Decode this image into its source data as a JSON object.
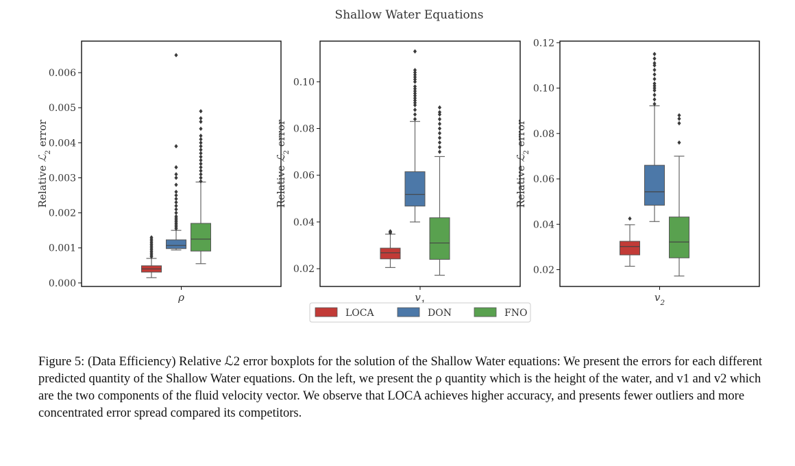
{
  "suptitle": "Shallow Water Equations",
  "colors": {
    "LOCA": "#c23b37",
    "DON": "#4c78a8",
    "FNO": "#59a14f",
    "frame": "#111111",
    "whisker": "#666666",
    "outlier": "#3b3b3b"
  },
  "chart_data": [
    {
      "type": "box",
      "category": "ρ",
      "ylabel": "Relative ℒ2 error",
      "ylim": [
        -0.0001,
        0.0069
      ],
      "yticks": [
        "0.000",
        "0.001",
        "0.002",
        "0.003",
        "0.004",
        "0.005",
        "0.006"
      ],
      "series": [
        {
          "name": "LOCA",
          "whislo": 0.00015,
          "q1": 0.00031,
          "med": 0.0004,
          "q3": 0.00049,
          "whishi": 0.0007,
          "fliers": [
            0.00075,
            0.0008,
            0.00085,
            0.0009,
            0.00095,
            0.001,
            0.00105,
            0.0011,
            0.00115,
            0.0012,
            0.00125,
            0.0013
          ]
        },
        {
          "name": "DON",
          "whislo": 0.00094,
          "q1": 0.00098,
          "med": 0.00107,
          "q3": 0.00123,
          "whishi": 0.0015,
          "fliers": [
            0.00155,
            0.0016,
            0.00165,
            0.0017,
            0.00175,
            0.0018,
            0.00185,
            0.0019,
            0.002,
            0.0021,
            0.0022,
            0.0023,
            0.0024,
            0.0025,
            0.0026,
            0.0028,
            0.003,
            0.0031,
            0.0033,
            0.0039,
            0.0065
          ]
        },
        {
          "name": "FNO",
          "whislo": 0.00055,
          "q1": 0.00091,
          "med": 0.00125,
          "q3": 0.0017,
          "whishi": 0.00288,
          "fliers": [
            0.0029,
            0.003,
            0.0031,
            0.0032,
            0.0033,
            0.0034,
            0.0035,
            0.0036,
            0.0037,
            0.0038,
            0.0039,
            0.004,
            0.0041,
            0.0042,
            0.0044,
            0.0046,
            0.0047,
            0.0049
          ]
        }
      ]
    },
    {
      "type": "box",
      "category": "v1",
      "ylabel": "Relative ℒ2 error",
      "ylim": [
        0.0124,
        0.1174
      ],
      "yticks": [
        "0.02",
        "0.04",
        "0.06",
        "0.08",
        "0.10"
      ],
      "series": [
        {
          "name": "LOCA",
          "whislo": 0.0205,
          "q1": 0.0242,
          "med": 0.0268,
          "q3": 0.0288,
          "whishi": 0.0348,
          "fliers": [
            0.0353,
            0.0357,
            0.036
          ]
        },
        {
          "name": "DON",
          "whislo": 0.04,
          "q1": 0.0468,
          "med": 0.0518,
          "q3": 0.0615,
          "whishi": 0.083,
          "fliers": [
            0.084,
            0.086,
            0.088,
            0.09,
            0.091,
            0.092,
            0.093,
            0.094,
            0.095,
            0.096,
            0.097,
            0.098,
            0.1,
            0.101,
            0.102,
            0.103,
            0.104,
            0.105,
            0.113
          ]
        },
        {
          "name": "FNO",
          "whislo": 0.0172,
          "q1": 0.024,
          "med": 0.031,
          "q3": 0.0418,
          "whishi": 0.068,
          "fliers": [
            0.07,
            0.072,
            0.074,
            0.076,
            0.078,
            0.08,
            0.082,
            0.084,
            0.086,
            0.087,
            0.089
          ]
        }
      ]
    },
    {
      "type": "box",
      "category": "v2",
      "ylabel": "Relative ℒ2 error",
      "ylim": [
        0.0126,
        0.1207
      ],
      "yticks": [
        "0.02",
        "0.04",
        "0.06",
        "0.08",
        "0.10",
        "0.12"
      ],
      "series": [
        {
          "name": "LOCA",
          "whislo": 0.0215,
          "q1": 0.0265,
          "med": 0.0302,
          "q3": 0.0325,
          "whishi": 0.0398,
          "fliers": [
            0.0425
          ]
        },
        {
          "name": "DON",
          "whislo": 0.0412,
          "q1": 0.0484,
          "med": 0.0543,
          "q3": 0.066,
          "whishi": 0.0922,
          "fliers": [
            0.093,
            0.095,
            0.097,
            0.099,
            0.1,
            0.101,
            0.102,
            0.104,
            0.106,
            0.108,
            0.11,
            0.111,
            0.113,
            0.115
          ]
        },
        {
          "name": "FNO",
          "whislo": 0.0172,
          "q1": 0.0252,
          "med": 0.0322,
          "q3": 0.0432,
          "whishi": 0.07,
          "fliers": [
            0.076,
            0.0845,
            0.0865,
            0.088
          ]
        }
      ]
    }
  ],
  "legend": [
    {
      "name": "LOCA",
      "label": "LOCA"
    },
    {
      "name": "DON",
      "label": "DON"
    },
    {
      "name": "FNO",
      "label": "FNO"
    }
  ],
  "caption": "Figure 5:  (Data Efficiency) Relative ℒ2 error boxplots for the solution of the Shallow Water equations: We present the errors for each different predicted quantity of the Shallow Water equations. On the left, we present the ρ quantity which is the height of the water, and v1 and v2 which are the two components of the fluid velocity vector. We observe that LOCA achieves higher accuracy, and presents fewer outliers and more concentrated error spread compared its competitors."
}
